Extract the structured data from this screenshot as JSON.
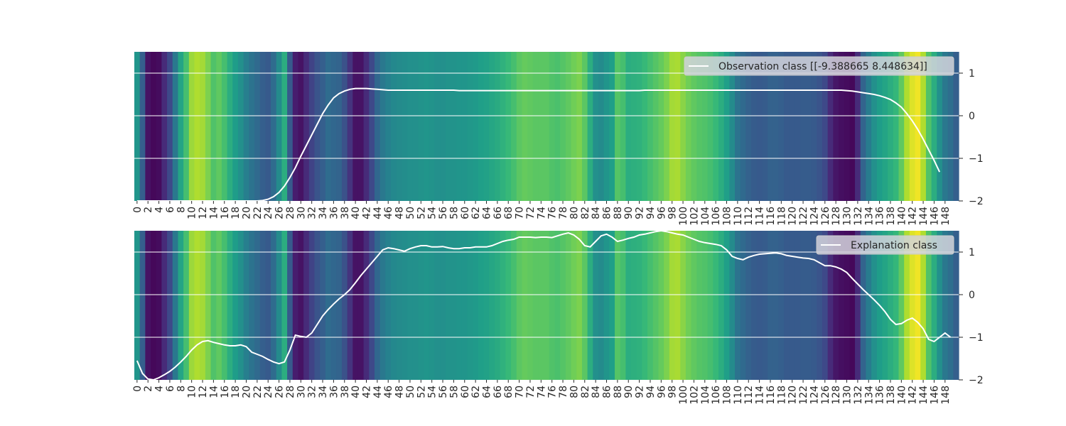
{
  "colormap": "viridis",
  "line_color": "#ffffff",
  "grid_color": "#ffffff",
  "xtick_labels": [
    "0",
    "2",
    "4",
    "6",
    "8",
    "10",
    "12",
    "14",
    "16",
    "18",
    "20",
    "22",
    "24",
    "26",
    "28",
    "30",
    "32",
    "34",
    "36",
    "38",
    "40",
    "42",
    "44",
    "46",
    "48",
    "50",
    "52",
    "54",
    "56",
    "58",
    "60",
    "62",
    "64",
    "66",
    "68",
    "70",
    "72",
    "74",
    "76",
    "78",
    "80",
    "82",
    "84",
    "86",
    "88",
    "90",
    "92",
    "94",
    "96",
    "98",
    "100",
    "102",
    "104",
    "106",
    "108",
    "110",
    "112",
    "114",
    "116",
    "118",
    "120",
    "122",
    "124",
    "126",
    "128",
    "130",
    "132",
    "134",
    "136",
    "138",
    "140",
    "142",
    "144",
    "146",
    "148"
  ],
  "ytick_labels": [
    "1",
    "0",
    "−1",
    "−2"
  ],
  "chart_data": [
    {
      "type": "heatmap",
      "legend": {
        "label": "Observation class [[-9.388665  8.448634]]",
        "placement": "top-right"
      },
      "x": [
        0,
        1,
        2,
        3,
        4,
        5,
        6,
        7,
        8,
        9,
        10,
        11,
        12,
        13,
        14,
        15,
        16,
        17,
        18,
        19,
        20,
        21,
        22,
        23,
        24,
        25,
        26,
        27,
        28,
        29,
        30,
        31,
        32,
        33,
        34,
        35,
        36,
        37,
        38,
        39,
        40,
        41,
        42,
        43,
        44,
        45,
        46,
        47,
        48,
        49,
        50,
        51,
        52,
        53,
        54,
        55,
        56,
        57,
        58,
        59,
        60,
        61,
        62,
        63,
        64,
        65,
        66,
        67,
        68,
        69,
        70,
        71,
        72,
        73,
        74,
        75,
        76,
        77,
        78,
        79,
        80,
        81,
        82,
        83,
        84,
        85,
        86,
        87,
        88,
        89,
        90,
        91,
        92,
        93,
        94,
        95,
        96,
        97,
        98,
        99,
        100,
        101,
        102,
        103,
        104,
        105,
        106,
        107,
        108,
        109,
        110,
        111,
        112,
        113,
        114,
        115,
        116,
        117,
        118,
        119,
        120,
        121,
        122,
        123,
        124,
        125,
        126,
        127,
        128,
        129,
        130,
        131,
        132,
        133,
        134,
        135,
        136,
        137,
        138,
        139,
        140,
        141,
        142,
        143,
        144,
        145,
        146,
        147,
        148,
        149
      ],
      "heat": [
        0.52,
        0.3,
        0.05,
        0.02,
        0.03,
        0.12,
        0.22,
        0.4,
        0.58,
        0.7,
        0.85,
        0.88,
        0.86,
        0.8,
        0.72,
        0.75,
        0.7,
        0.62,
        0.55,
        0.5,
        0.43,
        0.38,
        0.34,
        0.3,
        0.28,
        0.35,
        0.48,
        0.62,
        0.28,
        0.08,
        0.05,
        0.12,
        0.2,
        0.26,
        0.3,
        0.35,
        0.33,
        0.32,
        0.25,
        0.15,
        0.05,
        0.05,
        0.12,
        0.22,
        0.33,
        0.4,
        0.44,
        0.47,
        0.48,
        0.49,
        0.5,
        0.5,
        0.51,
        0.52,
        0.51,
        0.5,
        0.5,
        0.51,
        0.51,
        0.52,
        0.52,
        0.53,
        0.54,
        0.56,
        0.57,
        0.59,
        0.61,
        0.64,
        0.67,
        0.7,
        0.74,
        0.76,
        0.75,
        0.74,
        0.74,
        0.74,
        0.72,
        0.71,
        0.73,
        0.75,
        0.78,
        0.8,
        0.74,
        0.62,
        0.5,
        0.48,
        0.52,
        0.56,
        0.73,
        0.7,
        0.62,
        0.63,
        0.64,
        0.67,
        0.7,
        0.73,
        0.76,
        0.8,
        0.86,
        0.87,
        0.82,
        0.78,
        0.75,
        0.73,
        0.72,
        0.7,
        0.67,
        0.62,
        0.56,
        0.48,
        0.38,
        0.34,
        0.31,
        0.29,
        0.28,
        0.29,
        0.31,
        0.31,
        0.3,
        0.28,
        0.28,
        0.28,
        0.29,
        0.29,
        0.28,
        0.26,
        0.22,
        0.12,
        0.06,
        0.04,
        0.03,
        0.02,
        0.12,
        0.32,
        0.42,
        0.5,
        0.55,
        0.58,
        0.62,
        0.66,
        0.75,
        0.88,
        0.95,
        0.98,
        0.88,
        0.72,
        0.62,
        0.5,
        0.4,
        0.36,
        0.3
      ],
      "y": [
        -2.0,
        -2.0,
        -2.0,
        -2.0,
        -2.0,
        -2.0,
        -2.0,
        -2.0,
        -2.0,
        -2.0,
        -2.0,
        -2.0,
        -2.0,
        -2.0,
        -2.0,
        -2.0,
        -2.0,
        -2.0,
        -2.0,
        -2.0,
        -2.0,
        -2.0,
        -2.0,
        -1.99,
        -1.96,
        -1.9,
        -1.8,
        -1.65,
        -1.45,
        -1.22,
        -0.95,
        -0.7,
        -0.45,
        -0.2,
        0.05,
        0.25,
        0.42,
        0.52,
        0.58,
        0.62,
        0.64,
        0.64,
        0.64,
        0.63,
        0.62,
        0.61,
        0.6,
        0.6,
        0.6,
        0.6,
        0.6,
        0.6,
        0.6,
        0.6,
        0.6,
        0.6,
        0.6,
        0.6,
        0.6,
        0.59,
        0.59,
        0.59,
        0.59,
        0.59,
        0.59,
        0.59,
        0.59,
        0.59,
        0.59,
        0.59,
        0.59,
        0.59,
        0.59,
        0.59,
        0.59,
        0.59,
        0.59,
        0.59,
        0.59,
        0.59,
        0.59,
        0.59,
        0.59,
        0.59,
        0.59,
        0.59,
        0.59,
        0.59,
        0.59,
        0.59,
        0.59,
        0.59,
        0.59,
        0.6,
        0.6,
        0.6,
        0.6,
        0.6,
        0.6,
        0.6,
        0.6,
        0.6,
        0.6,
        0.6,
        0.6,
        0.6,
        0.6,
        0.6,
        0.6,
        0.6,
        0.6,
        0.6,
        0.6,
        0.6,
        0.6,
        0.6,
        0.6,
        0.6,
        0.6,
        0.6,
        0.6,
        0.6,
        0.6,
        0.6,
        0.6,
        0.6,
        0.6,
        0.6,
        0.6,
        0.6,
        0.59,
        0.58,
        0.56,
        0.54,
        0.52,
        0.5,
        0.47,
        0.43,
        0.38,
        0.3,
        0.2,
        0.05,
        -0.12,
        -0.32,
        -0.55,
        -0.8,
        -1.05,
        -1.32
      ],
      "ylim": [
        -2,
        1.5
      ],
      "yticks": [
        1,
        0,
        -1,
        -2
      ],
      "grid": true
    },
    {
      "type": "heatmap",
      "legend": {
        "label": "Explanation class",
        "placement": "top-right"
      },
      "heat_same_as_first": true,
      "y": [
        -1.55,
        -1.85,
        -1.98,
        -2.0,
        -1.95,
        -1.88,
        -1.8,
        -1.7,
        -1.58,
        -1.45,
        -1.3,
        -1.18,
        -1.1,
        -1.08,
        -1.12,
        -1.15,
        -1.18,
        -1.2,
        -1.2,
        -1.18,
        -1.22,
        -1.35,
        -1.4,
        -1.45,
        -1.52,
        -1.58,
        -1.62,
        -1.58,
        -1.3,
        -0.95,
        -0.98,
        -1.0,
        -0.9,
        -0.7,
        -0.5,
        -0.35,
        -0.22,
        -0.1,
        0.0,
        0.12,
        0.28,
        0.45,
        0.6,
        0.75,
        0.9,
        1.05,
        1.1,
        1.08,
        1.05,
        1.02,
        1.08,
        1.12,
        1.15,
        1.15,
        1.12,
        1.12,
        1.13,
        1.1,
        1.08,
        1.08,
        1.1,
        1.1,
        1.12,
        1.12,
        1.12,
        1.15,
        1.2,
        1.25,
        1.28,
        1.3,
        1.35,
        1.35,
        1.35,
        1.34,
        1.35,
        1.35,
        1.34,
        1.38,
        1.42,
        1.45,
        1.4,
        1.3,
        1.15,
        1.12,
        1.25,
        1.38,
        1.42,
        1.35,
        1.25,
        1.28,
        1.32,
        1.35,
        1.4,
        1.42,
        1.45,
        1.48,
        1.5,
        1.48,
        1.45,
        1.42,
        1.4,
        1.35,
        1.3,
        1.25,
        1.22,
        1.2,
        1.18,
        1.15,
        1.05,
        0.9,
        0.85,
        0.82,
        0.88,
        0.92,
        0.95,
        0.96,
        0.97,
        0.98,
        0.96,
        0.92,
        0.9,
        0.88,
        0.86,
        0.85,
        0.82,
        0.75,
        0.68,
        0.68,
        0.65,
        0.6,
        0.52,
        0.38,
        0.25,
        0.12,
        0.0,
        -0.12,
        -0.25,
        -0.4,
        -0.58,
        -0.7,
        -0.68,
        -0.6,
        -0.55,
        -0.65,
        -0.8,
        -1.05,
        -1.1,
        -1.0,
        -0.9,
        -1.0
      ],
      "ylim": [
        -2,
        1.5
      ],
      "yticks": [
        1,
        0,
        -1,
        -2
      ],
      "grid": true
    }
  ]
}
